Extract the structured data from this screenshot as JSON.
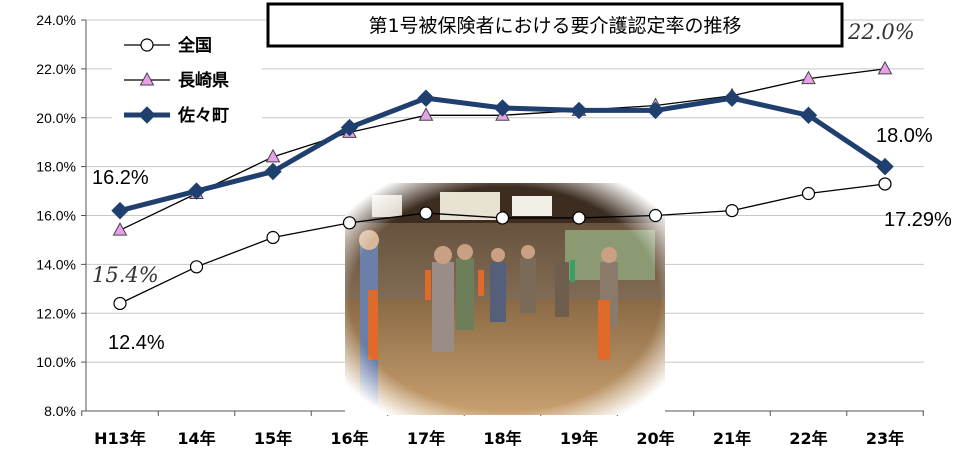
{
  "chart_data": {
    "type": "line",
    "title": "第1号被保険者における要介護認定率の推移",
    "categories": [
      "H13年",
      "14年",
      "15年",
      "16年",
      "17年",
      "18年",
      "19年",
      "20年",
      "21年",
      "22年",
      "23年"
    ],
    "ylim": [
      8.0,
      24.0
    ],
    "yticks": [
      "8.0%",
      "10.0%",
      "12.0%",
      "14.0%",
      "16.0%",
      "18.0%",
      "20.0%",
      "22.0%",
      "24.0%"
    ],
    "ytick_values": [
      8,
      10,
      12,
      14,
      16,
      18,
      20,
      22,
      24
    ],
    "grid": true,
    "legend_position": "top-left",
    "series": [
      {
        "name": "全国",
        "values": [
          12.4,
          13.9,
          15.1,
          15.7,
          16.1,
          15.9,
          15.9,
          16.0,
          16.2,
          16.9,
          17.29
        ],
        "color": "#000000",
        "marker": "circle"
      },
      {
        "name": "長崎県",
        "values": [
          15.4,
          16.9,
          18.4,
          19.4,
          20.1,
          20.1,
          20.3,
          20.5,
          20.9,
          21.6,
          22.0
        ],
        "color": "#000000",
        "marker": "triangle"
      },
      {
        "name": "佐々町",
        "values": [
          16.2,
          17.0,
          17.8,
          19.6,
          20.8,
          20.4,
          20.3,
          20.3,
          20.8,
          20.1,
          18.0
        ],
        "color": "#1f3f6e",
        "marker": "diamond"
      }
    ],
    "annotations": [
      {
        "id": "sasa_start",
        "text": "16.2%"
      },
      {
        "id": "nagasaki_end",
        "text": "22.0%"
      },
      {
        "id": "sasa_end",
        "text": "18.0%"
      },
      {
        "id": "national_end",
        "text": "17.29%"
      },
      {
        "id": "nagasaki_start",
        "text": "15.4%"
      },
      {
        "id": "national_start",
        "text": "12.4%"
      }
    ]
  },
  "photo": {
    "icon": "exercise-class-photo"
  }
}
